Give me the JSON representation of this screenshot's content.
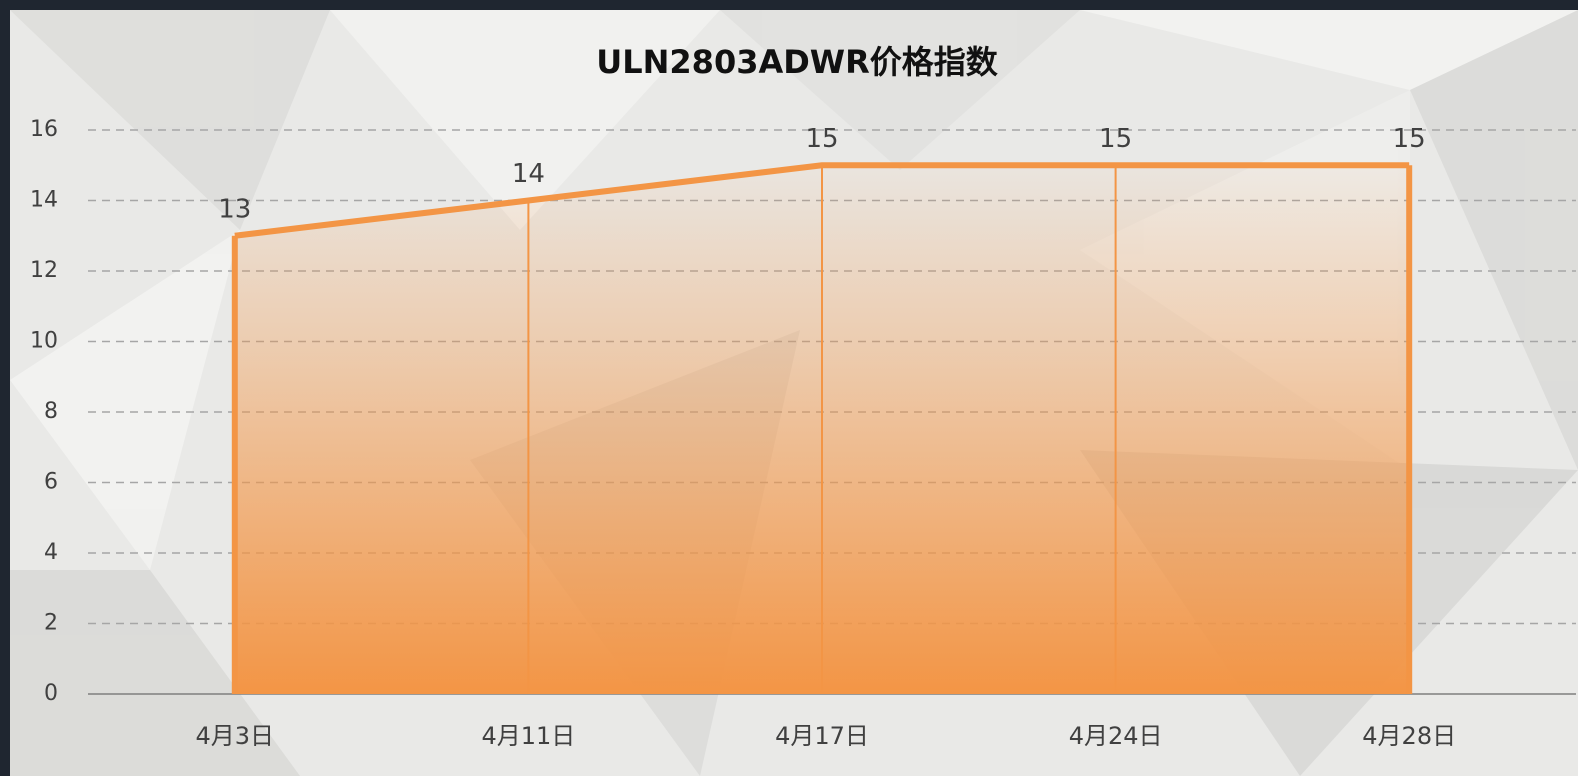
{
  "chart_data": {
    "type": "area",
    "title": "ULN2803ADWR价格指数",
    "categories": [
      "4月3日",
      "4月11日",
      "4月17日",
      "4月24日",
      "4月28日"
    ],
    "values": [
      13,
      14,
      15,
      15,
      15
    ],
    "color": "#f39545",
    "ylim": [
      0,
      16
    ],
    "yticks": [
      0,
      2,
      4,
      6,
      8,
      10,
      12,
      14,
      16
    ],
    "grid": true
  }
}
